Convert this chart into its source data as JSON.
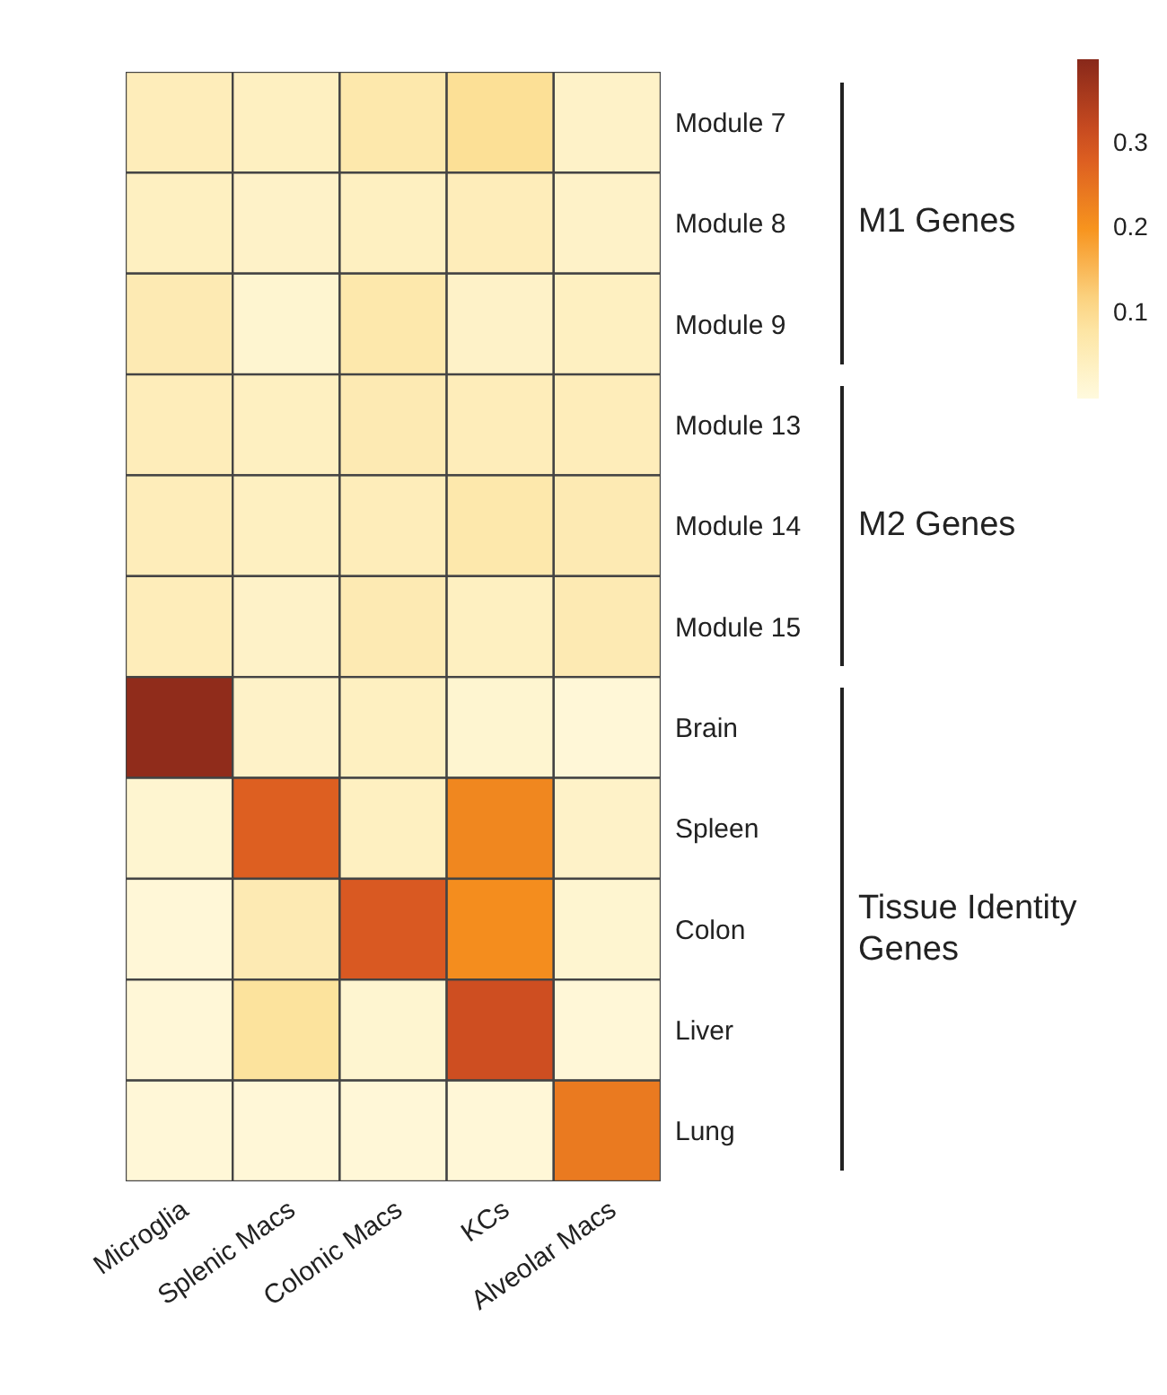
{
  "chart_data": {
    "type": "heatmap",
    "categories": [
      "Microglia",
      "Splenic Macs",
      "Colonic Macs",
      "KCs",
      "Alveolar Macs"
    ],
    "y_categories": [
      "Module 7",
      "Module 8",
      "Module 9",
      "Module 13",
      "Module 14",
      "Module 15",
      "Brain",
      "Spleen",
      "Colon",
      "Liver",
      "Lung"
    ],
    "cells": [
      [
        0.05,
        0.04,
        0.07,
        0.1,
        0.03
      ],
      [
        0.04,
        0.03,
        0.04,
        0.05,
        0.03
      ],
      [
        0.06,
        0.02,
        0.07,
        0.03,
        0.04
      ],
      [
        0.05,
        0.04,
        0.06,
        0.05,
        0.05
      ],
      [
        0.05,
        0.04,
        0.05,
        0.07,
        0.06
      ],
      [
        0.05,
        0.03,
        0.06,
        0.04,
        0.06
      ],
      [
        0.39,
        0.03,
        0.04,
        0.02,
        0.01
      ],
      [
        0.02,
        0.28,
        0.04,
        0.22,
        0.03
      ],
      [
        0.01,
        0.06,
        0.29,
        0.21,
        0.02
      ],
      [
        0.01,
        0.09,
        0.02,
        0.31,
        0.01
      ],
      [
        0.01,
        0.01,
        0.01,
        0.01,
        0.24
      ]
    ],
    "clim": [
      0,
      0.4
    ],
    "cticks": [
      0.1,
      0.2,
      0.3
    ],
    "annotations": [
      "M1 Genes",
      "M2 Genes",
      "Tissue Identity Genes"
    ]
  }
}
